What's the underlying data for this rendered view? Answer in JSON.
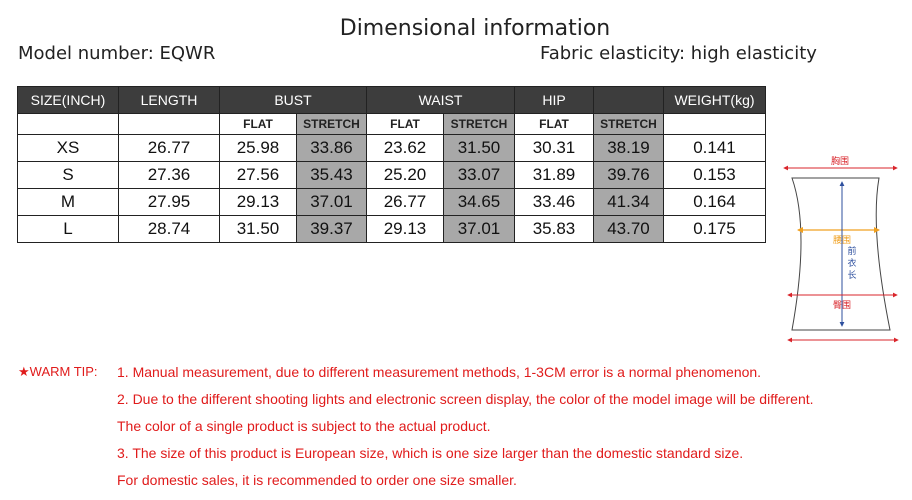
{
  "title": "Dimensional information",
  "model_number": "Model number: EQWR",
  "fabric": "Fabric elasticity: high elasticity",
  "table": {
    "headers": [
      "SIZE(INCH)",
      "LENGTH",
      "BUST",
      "WAIST",
      "HIP",
      "",
      "WEIGHT(kg)"
    ],
    "sub": {
      "flat": "FLAT",
      "stretch": "STRETCH"
    },
    "rows": [
      [
        "XS",
        "26.77",
        "25.98",
        "33.86",
        "23.62",
        "31.50",
        "30.31",
        "38.19",
        "0.141"
      ],
      [
        "S",
        "27.36",
        "27.56",
        "35.43",
        "25.20",
        "33.07",
        "31.89",
        "39.76",
        "0.153"
      ],
      [
        "M",
        "27.95",
        "29.13",
        "37.01",
        "26.77",
        "34.65",
        "33.46",
        "41.34",
        "0.164"
      ],
      [
        "L",
        "28.74",
        "31.50",
        "39.37",
        "29.13",
        "37.01",
        "35.83",
        "43.70",
        "0.175"
      ]
    ]
  },
  "diagram": {
    "bust": "胸围",
    "waist": "腰围",
    "hip": "臀围",
    "length": [
      "前",
      "衣",
      "长"
    ],
    "colors": {
      "red": "#d9252b",
      "orange": "#f0a020",
      "blue": "#2d4f9e"
    }
  },
  "tips": {
    "label": "★WARM TIP:",
    "lines": [
      "1. Manual measurement, due to different measurement methods, 1-3CM error is a normal phenomenon.",
      "2. Due to the different shooting lights and electronic screen display, the  color of the model image will be different.",
      "The color of a single product is subject to the actual product.",
      "3. The size of this product is European size, which is one size larger than the domestic standard size.",
      "For domestic sales, it is recommended to order one size smaller."
    ]
  }
}
